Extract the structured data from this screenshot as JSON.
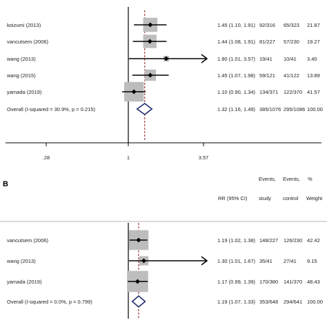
{
  "chart_data": [
    {
      "type": "forest",
      "panel_label": "",
      "xlabel": "",
      "ylabel": "",
      "x_scale": "log",
      "null_value": 1,
      "x_ticks": [
        ".28",
        "1",
        "3.57"
      ],
      "headers": {
        "effect": "",
        "events_treatment_line1": "",
        "events_treatment_line2": "",
        "events_control_line1": "",
        "events_control_line2": "",
        "weight_line1": "",
        "weight_line2": ""
      },
      "studies": [
        {
          "label": "koizumi  (2013)",
          "rr": 1.45,
          "lo": 1.1,
          "hi": 1.91,
          "ci_text": "1.45 (1.10, 1.91)",
          "treatment": "92/316",
          "control": "65/323",
          "weight": "21.87",
          "weight_value": 21.87,
          "arrow": false
        },
        {
          "label": "vancutsem  (2006)",
          "rr": 1.44,
          "lo": 1.08,
          "hi": 1.91,
          "ci_text": "1.44 (1.08, 1.91)",
          "treatment": "81/227",
          "control": "57/230",
          "weight": "19.27",
          "weight_value": 19.27,
          "arrow": false
        },
        {
          "label": "wang  (2013)",
          "rr": 1.9,
          "lo": 1.01,
          "hi": 3.57,
          "ci_text": "1.90 (1.01, 3.57)",
          "treatment": "19/41",
          "control": "10/41",
          "weight": "3.40",
          "weight_value": 3.4,
          "arrow": true
        },
        {
          "label": "wang  (2015)",
          "rr": 1.45,
          "lo": 1.07,
          "hi": 1.98,
          "ci_text": "1.45 (1.07, 1.98)",
          "treatment": "59/121",
          "control": "41/122",
          "weight": "13.89",
          "weight_value": 13.89,
          "arrow": false
        },
        {
          "label": "yamada  (2019)",
          "rr": 1.1,
          "lo": 0.9,
          "hi": 1.34,
          "ci_text": "1.10 (0.90, 1.34)",
          "treatment": "134/371",
          "control": "122/370",
          "weight": "41.57",
          "weight_value": 41.57,
          "arrow": false
        }
      ],
      "overall": {
        "label": "Overall  (I-squared = 30.9%, p = 0.215)",
        "rr": 1.32,
        "lo": 1.16,
        "hi": 1.49,
        "ci_text": "1.32 (1.16, 1.49)",
        "treatment": "385/1076",
        "control": "295/1086",
        "weight": "100.00"
      }
    },
    {
      "type": "forest",
      "panel_label": "B",
      "xlabel": "",
      "ylabel": "",
      "x_scale": "log",
      "null_value": 1,
      "x_ticks": [],
      "headers": {
        "effect": "RR (95% CI)",
        "events_treatment_line1": "Events,",
        "events_treatment_line2": "study",
        "events_control_line1": "Events,",
        "events_control_line2": "control",
        "weight_line1": "%",
        "weight_line2": "Weight"
      },
      "studies": [
        {
          "label": "vancutsem  (2006)",
          "rr": 1.19,
          "lo": 1.02,
          "hi": 1.38,
          "ci_text": "1.19 (1.02, 1.38)",
          "treatment": "148/227",
          "control": "126/230",
          "weight": "42.42",
          "weight_value": 42.42,
          "arrow": false
        },
        {
          "label": "wang  (2013)",
          "rr": 1.3,
          "lo": 1.01,
          "hi": 1.67,
          "ci_text": "1.30 (1.01, 1.67)",
          "treatment": "35/41",
          "control": "27/41",
          "weight": "9.15",
          "weight_value": 9.15,
          "arrow": true
        },
        {
          "label": "yamada  (2019)",
          "rr": 1.17,
          "lo": 0.99,
          "hi": 1.39,
          "ci_text": "1.17 (0.99, 1.39)",
          "treatment": "170/380",
          "control": "141/370",
          "weight": "48.43",
          "weight_value": 48.43,
          "arrow": false
        }
      ],
      "overall": {
        "label": "Overall  (I-squared = 0.0%, p = 0.799)",
        "rr": 1.19,
        "lo": 1.07,
        "hi": 1.33,
        "ci_text": "1.19 (1.07, 1.33)",
        "treatment": "353/648",
        "control": "294/641",
        "weight": "100.00"
      }
    }
  ],
  "colors": {
    "box": "#bdbdbd",
    "point": "#000000",
    "ci_line": "#000000",
    "diamond": "#1f2a6e",
    "overall_dash": "#8b1a1a",
    "axis": "#000000",
    "text": "#222222"
  }
}
